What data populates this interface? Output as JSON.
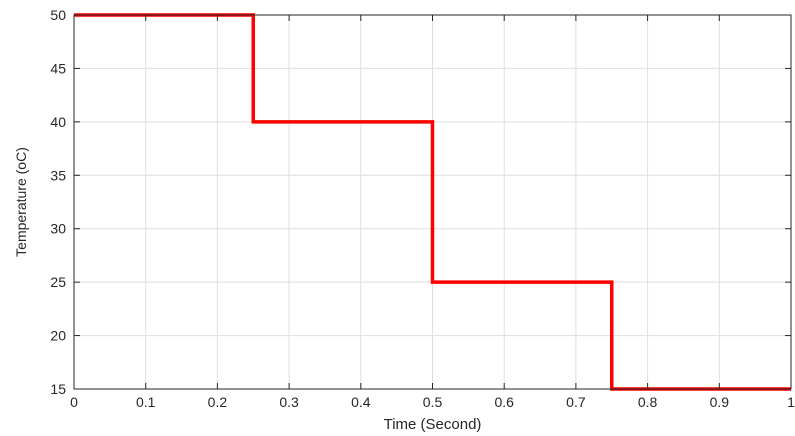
{
  "chart_data": {
    "type": "line",
    "title": "",
    "xlabel": "Time (Second)",
    "ylabel": "Temperature (oC)",
    "xlim": [
      0,
      1
    ],
    "ylim": [
      15,
      50
    ],
    "grid": true,
    "x_ticks": [
      "0",
      "0.1",
      "0.2",
      "0.3",
      "0.4",
      "0.5",
      "0.6",
      "0.7",
      "0.8",
      "0.9",
      "1"
    ],
    "y_ticks": [
      "15",
      "20",
      "25",
      "30",
      "35",
      "40",
      "45",
      "50"
    ],
    "series": [
      {
        "color": "#ff0000",
        "x": [
          0,
          0.25,
          0.25,
          0.5,
          0.5,
          0.75,
          0.75,
          1
        ],
        "y": [
          50,
          50,
          40,
          40,
          25,
          25,
          15,
          15
        ]
      }
    ]
  }
}
